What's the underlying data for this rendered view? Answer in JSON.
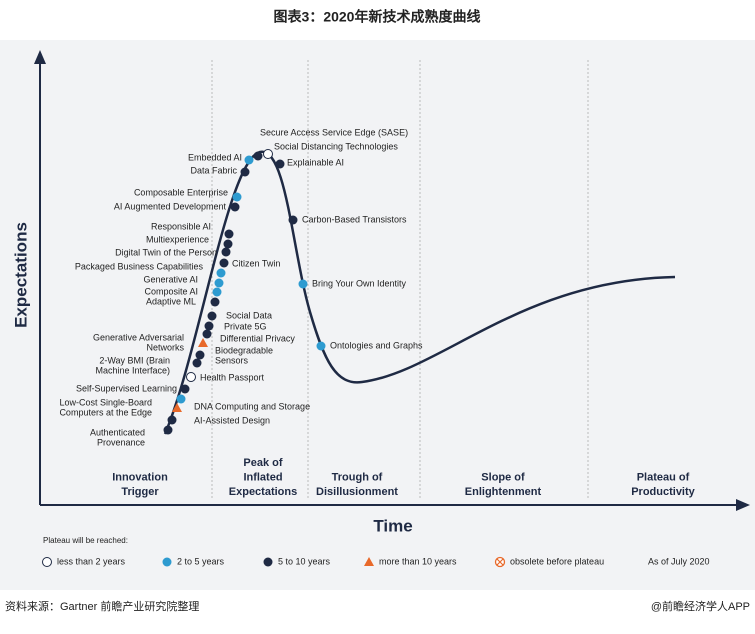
{
  "title": "图表3：2020年新技术成熟度曲线",
  "y_axis_label": "Expectations",
  "x_axis_label": "Time",
  "phases": [
    [
      "Innovation",
      "Trigger"
    ],
    [
      "Peak of",
      "Inflated",
      "Expectations"
    ],
    [
      "Trough of",
      "Disillusionment"
    ],
    [
      "Slope of",
      "Enlightenment"
    ],
    [
      "Plateau of",
      "Productivity"
    ]
  ],
  "technologies": [
    {
      "label": [
        "Secure Access Service Edge (SASE)"
      ]
    },
    {
      "label": [
        "Social Distancing Technologies"
      ]
    },
    {
      "label": [
        "Embedded AI"
      ]
    },
    {
      "label": [
        "Explainable AI"
      ]
    },
    {
      "label": [
        "Data Fabric"
      ]
    },
    {
      "label": [
        "Composable Enterprise"
      ]
    },
    {
      "label": [
        "AI Augmented Development"
      ]
    },
    {
      "label": [
        "Carbon-Based Transistors"
      ]
    },
    {
      "label": [
        "Responsible AI"
      ]
    },
    {
      "label": [
        "Multiexperience"
      ]
    },
    {
      "label": [
        "Digital Twin of the Person"
      ]
    },
    {
      "label": [
        "Citizen Twin"
      ]
    },
    {
      "label": [
        "Packaged Business Capabilities"
      ]
    },
    {
      "label": [
        "Generative AI"
      ]
    },
    {
      "label": [
        "Bring Your Own Identity"
      ]
    },
    {
      "label": [
        "Composite AI"
      ]
    },
    {
      "label": [
        "Adaptive ML"
      ]
    },
    {
      "label": [
        "Social Data"
      ]
    },
    {
      "label": [
        "Private 5G"
      ]
    },
    {
      "label": [
        "Differential Privacy"
      ]
    },
    {
      "label": [
        "Ontologies and Graphs"
      ]
    },
    {
      "label": [
        "Generative Adversarial",
        "Networks"
      ]
    },
    {
      "label": [
        "Biodegradable",
        "Sensors"
      ]
    },
    {
      "label": [
        "2-Way BMI (Brain",
        "Machine Interface)"
      ]
    },
    {
      "label": [
        "Health Passport"
      ]
    },
    {
      "label": [
        "Self-Supervised Learning"
      ]
    },
    {
      "label": [
        "Low-Cost Single-Board",
        "Computers at the Edge"
      ]
    },
    {
      "label": [
        "DNA Computing and Storage"
      ]
    },
    {
      "label": [
        "AI-Assisted Design"
      ]
    },
    {
      "label": [
        "Authenticated",
        "Provenance"
      ]
    }
  ],
  "legend": {
    "title": "Plateau will be reached:",
    "items": [
      "less than 2 years",
      "2 to 5 years",
      "5 to 10 years",
      "more than 10 years",
      "obsolete before plateau"
    ],
    "note": "As of July 2020"
  },
  "footer": {
    "source": "资料来源：Gartner 前瞻产业研究院整理",
    "brand": "@前瞻经济学人APP"
  }
}
